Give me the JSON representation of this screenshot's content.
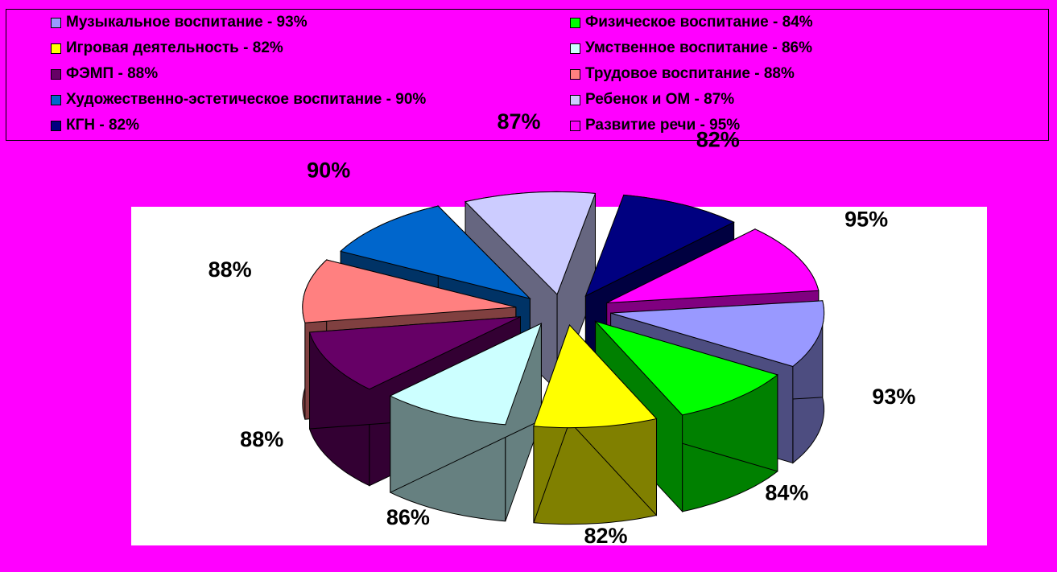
{
  "chart_data": {
    "type": "pie",
    "title": "",
    "legend_position": "top",
    "slices": [
      {
        "legend": "Музыкальное воспитание - 93%",
        "label": "93%",
        "value": 93,
        "color": "#9999FF",
        "side": "#4D4D80"
      },
      {
        "legend": "Физическое воспитание - 84%",
        "label": "84%",
        "value": 84,
        "color": "#00FF00",
        "side": "#008000"
      },
      {
        "legend": "Игровая деятельность - 82%",
        "label": "82%",
        "value": 82,
        "color": "#FFFF00",
        "side": "#808000"
      },
      {
        "legend": "Умственное воспитание - 86%",
        "label": "86%",
        "value": 86,
        "color": "#CCFFFF",
        "side": "#668080"
      },
      {
        "legend": "ФЭМП - 88%",
        "label": "88%",
        "value": 88,
        "color": "#660066",
        "side": "#330033"
      },
      {
        "legend": "Трудовое воспитание - 88%",
        "label": "88%",
        "value": 88,
        "color": "#FF8080",
        "side": "#804040"
      },
      {
        "legend": "Художественно-эстетическое воспитание - 90%",
        "label": "90%",
        "value": 90,
        "color": "#0066CC",
        "side": "#003366"
      },
      {
        "legend": "Ребенок и ОМ - 87%",
        "label": "87%",
        "value": 87,
        "color": "#CCCCFF",
        "side": "#666680"
      },
      {
        "legend": "КГН - 82%",
        "label": "82%",
        "value": 82,
        "color": "#000080",
        "side": "#000040"
      },
      {
        "legend": "Развитие речи - 95%",
        "label": "95%",
        "value": 95,
        "color": "#FF00FF",
        "side": "#800080"
      }
    ]
  }
}
